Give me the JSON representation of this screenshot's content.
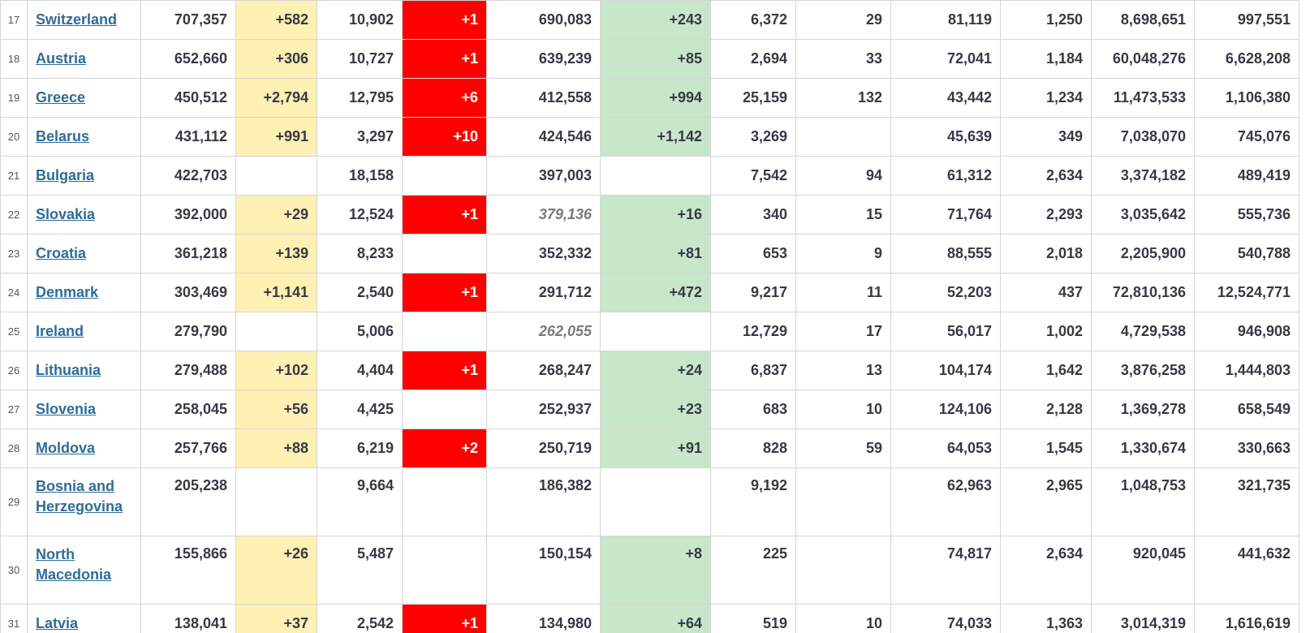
{
  "colors": {
    "new_cases_bg": "#fff0b3",
    "new_deaths_bg": "#ff0000",
    "new_recovered_bg": "#c8e6c9",
    "link": "#2f6c98"
  },
  "rows": [
    {
      "index": "17",
      "country": "Switzerland",
      "total_cases": "707,357",
      "new_cases": "+582",
      "total_deaths": "10,902",
      "new_deaths": "+1",
      "total_recovered": "690,083",
      "new_recovered": "+243",
      "active_cases": "6,372",
      "serious_critical": "29",
      "cases_per_1m": "81,119",
      "deaths_per_1m": "1,250",
      "total_tests": "8,698,651",
      "tests_per_1m": "997,551"
    },
    {
      "index": "18",
      "country": "Austria",
      "total_cases": "652,660",
      "new_cases": "+306",
      "total_deaths": "10,727",
      "new_deaths": "+1",
      "total_recovered": "639,239",
      "new_recovered": "+85",
      "active_cases": "2,694",
      "serious_critical": "33",
      "cases_per_1m": "72,041",
      "deaths_per_1m": "1,184",
      "total_tests": "60,048,276",
      "tests_per_1m": "6,628,208"
    },
    {
      "index": "19",
      "country": "Greece",
      "total_cases": "450,512",
      "new_cases": "+2,794",
      "total_deaths": "12,795",
      "new_deaths": "+6",
      "total_recovered": "412,558",
      "new_recovered": "+994",
      "active_cases": "25,159",
      "serious_critical": "132",
      "cases_per_1m": "43,442",
      "deaths_per_1m": "1,234",
      "total_tests": "11,473,533",
      "tests_per_1m": "1,106,380"
    },
    {
      "index": "20",
      "country": "Belarus",
      "total_cases": "431,112",
      "new_cases": "+991",
      "total_deaths": "3,297",
      "new_deaths": "+10",
      "total_recovered": "424,546",
      "new_recovered": "+1,142",
      "active_cases": "3,269",
      "serious_critical": "",
      "cases_per_1m": "45,639",
      "deaths_per_1m": "349",
      "total_tests": "7,038,070",
      "tests_per_1m": "745,076"
    },
    {
      "index": "21",
      "country": "Bulgaria",
      "total_cases": "422,703",
      "new_cases": "",
      "total_deaths": "18,158",
      "new_deaths": "",
      "total_recovered": "397,003",
      "new_recovered": "",
      "active_cases": "7,542",
      "serious_critical": "94",
      "cases_per_1m": "61,312",
      "deaths_per_1m": "2,634",
      "total_tests": "3,374,182",
      "tests_per_1m": "489,419"
    },
    {
      "index": "22",
      "country": "Slovakia",
      "total_cases": "392,000",
      "new_cases": "+29",
      "total_deaths": "12,524",
      "new_deaths": "+1",
      "total_recovered": "379,136",
      "new_recovered": "+16",
      "active_cases": "340",
      "serious_critical": "15",
      "cases_per_1m": "71,764",
      "deaths_per_1m": "2,293",
      "total_tests": "3,035,642",
      "tests_per_1m": "555,736"
    },
    {
      "index": "23",
      "country": "Croatia",
      "total_cases": "361,218",
      "new_cases": "+139",
      "total_deaths": "8,233",
      "new_deaths": "",
      "total_recovered": "352,332",
      "new_recovered": "+81",
      "active_cases": "653",
      "serious_critical": "9",
      "cases_per_1m": "88,555",
      "deaths_per_1m": "2,018",
      "total_tests": "2,205,900",
      "tests_per_1m": "540,788"
    },
    {
      "index": "24",
      "country": "Denmark",
      "total_cases": "303,469",
      "new_cases": "+1,141",
      "total_deaths": "2,540",
      "new_deaths": "+1",
      "total_recovered": "291,712",
      "new_recovered": "+472",
      "active_cases": "9,217",
      "serious_critical": "11",
      "cases_per_1m": "52,203",
      "deaths_per_1m": "437",
      "total_tests": "72,810,136",
      "tests_per_1m": "12,524,771"
    },
    {
      "index": "25",
      "country": "Ireland",
      "total_cases": "279,790",
      "new_cases": "",
      "total_deaths": "5,006",
      "new_deaths": "",
      "total_recovered": "262,055",
      "new_recovered": "",
      "active_cases": "12,729",
      "serious_critical": "17",
      "cases_per_1m": "56,017",
      "deaths_per_1m": "1,002",
      "total_tests": "4,729,538",
      "tests_per_1m": "946,908"
    },
    {
      "index": "26",
      "country": "Lithuania",
      "total_cases": "279,488",
      "new_cases": "+102",
      "total_deaths": "4,404",
      "new_deaths": "+1",
      "total_recovered": "268,247",
      "new_recovered": "+24",
      "active_cases": "6,837",
      "serious_critical": "13",
      "cases_per_1m": "104,174",
      "deaths_per_1m": "1,642",
      "total_tests": "3,876,258",
      "tests_per_1m": "1,444,803"
    },
    {
      "index": "27",
      "country": "Slovenia",
      "total_cases": "258,045",
      "new_cases": "+56",
      "total_deaths": "4,425",
      "new_deaths": "",
      "total_recovered": "252,937",
      "new_recovered": "+23",
      "active_cases": "683",
      "serious_critical": "10",
      "cases_per_1m": "124,106",
      "deaths_per_1m": "2,128",
      "total_tests": "1,369,278",
      "tests_per_1m": "658,549"
    },
    {
      "index": "28",
      "country": "Moldova",
      "total_cases": "257,766",
      "new_cases": "+88",
      "total_deaths": "6,219",
      "new_deaths": "+2",
      "total_recovered": "250,719",
      "new_recovered": "+91",
      "active_cases": "828",
      "serious_critical": "59",
      "cases_per_1m": "64,053",
      "deaths_per_1m": "1,545",
      "total_tests": "1,330,674",
      "tests_per_1m": "330,663"
    },
    {
      "index": "29",
      "country": "Bosnia and Herzegovina",
      "total_cases": "205,238",
      "new_cases": "",
      "total_deaths": "9,664",
      "new_deaths": "",
      "total_recovered": "186,382",
      "new_recovered": "",
      "active_cases": "9,192",
      "serious_critical": "",
      "cases_per_1m": "62,963",
      "deaths_per_1m": "2,965",
      "total_tests": "1,048,753",
      "tests_per_1m": "321,735"
    },
    {
      "index": "30",
      "country": "North Macedonia",
      "total_cases": "155,866",
      "new_cases": "+26",
      "total_deaths": "5,487",
      "new_deaths": "",
      "total_recovered": "150,154",
      "new_recovered": "+8",
      "active_cases": "225",
      "serious_critical": "",
      "cases_per_1m": "74,817",
      "deaths_per_1m": "2,634",
      "total_tests": "920,045",
      "tests_per_1m": "441,632"
    },
    {
      "index": "31",
      "country": "Latvia",
      "total_cases": "138,041",
      "new_cases": "+37",
      "total_deaths": "2,542",
      "new_deaths": "+1",
      "total_recovered": "134,980",
      "new_recovered": "+64",
      "active_cases": "519",
      "serious_critical": "10",
      "cases_per_1m": "74,033",
      "deaths_per_1m": "1,363",
      "total_tests": "3,014,319",
      "tests_per_1m": "1,616,619"
    }
  ]
}
